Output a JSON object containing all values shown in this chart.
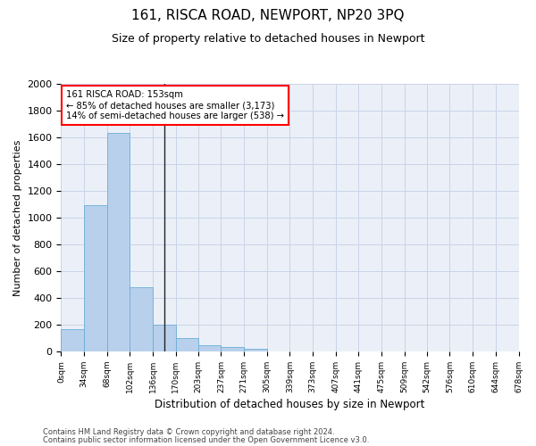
{
  "title": "161, RISCA ROAD, NEWPORT, NP20 3PQ",
  "subtitle": "Size of property relative to detached houses in Newport",
  "xlabel": "Distribution of detached houses by size in Newport",
  "ylabel": "Number of detached properties",
  "footer1": "Contains HM Land Registry data © Crown copyright and database right 2024.",
  "footer2": "Contains public sector information licensed under the Open Government Licence v3.0.",
  "annotation_line1": "161 RISCA ROAD: 153sqm",
  "annotation_line2": "← 85% of detached houses are smaller (3,173)",
  "annotation_line3": "14% of semi-detached houses are larger (538) →",
  "property_size": 153,
  "bar_values": [
    165,
    1095,
    1630,
    480,
    200,
    100,
    45,
    30,
    20,
    0,
    0,
    0,
    0,
    0,
    0,
    0,
    0,
    0,
    0,
    0
  ],
  "bin_edges": [
    0,
    34,
    68,
    102,
    136,
    170,
    203,
    237,
    271,
    305,
    339,
    373,
    407,
    441,
    475,
    509,
    542,
    576,
    610,
    644,
    678
  ],
  "tick_labels": [
    "0sqm",
    "34sqm",
    "68sqm",
    "102sqm",
    "136sqm",
    "170sqm",
    "203sqm",
    "237sqm",
    "271sqm",
    "305sqm",
    "339sqm",
    "373sqm",
    "407sqm",
    "441sqm",
    "475sqm",
    "509sqm",
    "542sqm",
    "576sqm",
    "610sqm",
    "644sqm",
    "678sqm"
  ],
  "bar_color": "#B8D0EC",
  "bar_edge_color": "#6AAED6",
  "vline_color": "#222222",
  "grid_color": "#C8D4E8",
  "background_color": "#EBF0F8",
  "ylim": [
    0,
    2000
  ],
  "yticks": [
    0,
    200,
    400,
    600,
    800,
    1000,
    1200,
    1400,
    1600,
    1800,
    2000
  ],
  "title_fontsize": 11,
  "subtitle_fontsize": 9,
  "ylabel_fontsize": 8,
  "xlabel_fontsize": 8.5
}
